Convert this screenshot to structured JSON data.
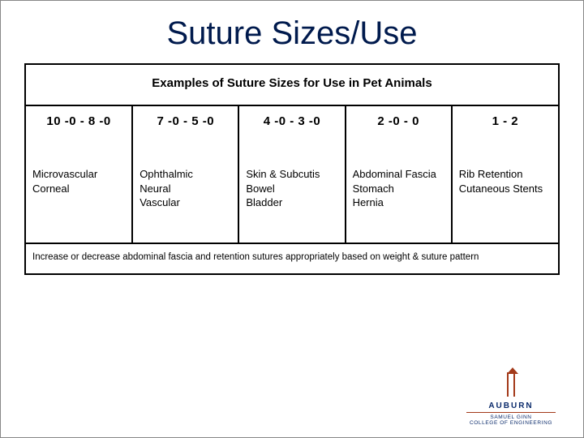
{
  "title": "Suture Sizes/Use",
  "table": {
    "caption": "Examples of Suture Sizes for Use in Pet Animals",
    "columns": [
      {
        "header": "10 -0 - 8 -0",
        "body": "Microvascular\nCorneal"
      },
      {
        "header": "7 -0 - 5 -0",
        "body": "Ophthalmic\nNeural\nVascular"
      },
      {
        "header": "4 -0 - 3 -0",
        "body": "Skin & Subcutis\nBowel\nBladder"
      },
      {
        "header": "2 -0 - 0",
        "body": "Abdominal Fascia\nStomach\nHernia"
      },
      {
        "header": "1 - 2",
        "body": "Rib Retention\nCutaneous Stents"
      }
    ],
    "footer": "Increase or decrease abdominal fascia and retention sutures appropriately based on weight & suture pattern"
  },
  "logo": {
    "line1": "AUBURN",
    "line2": "SAMUEL GINN",
    "line3": "COLLEGE OF ENGINEERING"
  },
  "colors": {
    "title": "#001a4d",
    "border": "#000000",
    "logo_orange": "#a33a1a",
    "logo_blue": "#0a2a6b",
    "background": "#ffffff"
  }
}
